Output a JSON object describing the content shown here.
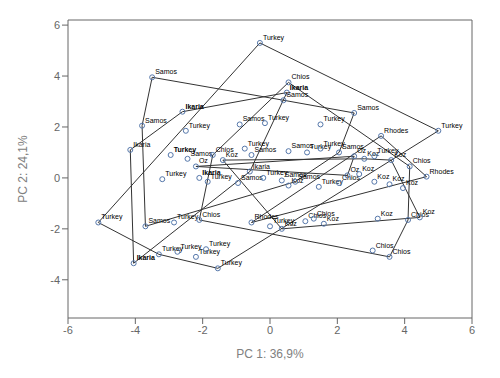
{
  "chart_data": {
    "type": "scatter",
    "xlabel": "PC 1: 36,9%",
    "ylabel": "PC 2: 24,1%",
    "xlim": [
      -6,
      6
    ],
    "ylim": [
      -5.5,
      6.2
    ],
    "xticks": [
      -6,
      -4,
      -2,
      0,
      2,
      4,
      6
    ],
    "yticks": [
      -4,
      -2,
      0,
      2,
      4,
      6
    ],
    "grid": false,
    "series": [
      {
        "type": "scatter",
        "color": "#5577aa",
        "marker": "open_circle",
        "x": [
          -0.3,
          -3.5,
          0.55,
          0.5,
          0.4,
          -2.6,
          -3.8,
          -2.5,
          -0.9,
          -0.15,
          2.5,
          1.5,
          5.0,
          3.3,
          -4.15,
          -2.95,
          -2.45,
          -2.2,
          -1.7,
          -1.4,
          -0.75,
          -0.55,
          0.55,
          1.1,
          1.5,
          2.05,
          2.5,
          2.8,
          3.1,
          3.6,
          4.15,
          4.65,
          -3.2,
          -2.1,
          -1.85,
          -0.95,
          -0.6,
          -0.2,
          0.35,
          0.55,
          0.75,
          1.45,
          2.05,
          2.3,
          2.65,
          3.1,
          3.55,
          3.95,
          -5.1,
          -3.7,
          -2.85,
          -2.1,
          -0.55,
          0.0,
          0.35,
          1.05,
          1.3,
          1.6,
          3.2,
          4.1,
          4.45,
          -3.3,
          -2.75,
          -2.2,
          -1.9,
          3.05,
          3.55,
          -4.05,
          -1.55
        ],
        "values": [
          5.3,
          3.95,
          3.75,
          3.35,
          3.05,
          2.6,
          2.05,
          1.85,
          2.1,
          2.15,
          2.55,
          2.1,
          1.85,
          1.65,
          1.1,
          0.9,
          0.75,
          0.45,
          0.9,
          0.7,
          1.15,
          0.9,
          1.05,
          1.0,
          1.15,
          1.0,
          0.85,
          0.75,
          0.85,
          0.7,
          0.45,
          0.05,
          -0.05,
          0.0,
          -0.15,
          -0.2,
          0.25,
          0.0,
          -0.1,
          -0.3,
          -0.15,
          -0.35,
          -0.2,
          0.1,
          0.15,
          -0.15,
          -0.25,
          -0.4,
          -1.75,
          -1.9,
          -1.75,
          -1.65,
          -1.75,
          -1.9,
          -2.0,
          -1.7,
          -1.6,
          -1.8,
          -1.6,
          -1.65,
          -1.55,
          -3.0,
          -2.9,
          -3.1,
          -2.8,
          -2.85,
          -3.1,
          -3.35,
          -3.55
        ],
        "labels": [
          "Turkey",
          "Samos",
          "Chios",
          "Ikaria",
          "Samos",
          "Ikaria",
          "Samos",
          "Turkey",
          "Samos",
          "Turkey",
          "Samos",
          "Turkey",
          "Turkey",
          "Rhodes",
          "Ikaria",
          "Turkey",
          "Samos",
          "Oz",
          "Chios",
          "Koz",
          "Turkey",
          "Samos",
          "Samos",
          "Turkey",
          "Turkey",
          "Samos",
          "Oz",
          "Koz",
          "Turkey",
          "Koz",
          "Chios",
          "Rhodes",
          "Turkey",
          "Ikaria",
          "Turkey",
          "Samos",
          "Ikaria",
          "Turkey",
          "Samos",
          "Koz",
          "Samos",
          "Turkey",
          "Chios",
          "Oz",
          "Koz",
          "Koz",
          "Koz",
          "Koz",
          "Turkey",
          "Samos",
          "Turkey",
          "Chios",
          "Rhodes",
          "Turkey",
          "Koz",
          "Chios",
          "Chios",
          "Koz",
          "Koz",
          "Chios",
          "Koz",
          "Turkey",
          "Turkey",
          "Turkey",
          "Turkey",
          "Chios",
          "Chios",
          "Ikaria",
          "Turkey"
        ],
        "bold": [
          false,
          false,
          false,
          true,
          false,
          true,
          false,
          false,
          false,
          false,
          false,
          false,
          false,
          false,
          false,
          true,
          false,
          false,
          false,
          false,
          false,
          false,
          false,
          false,
          false,
          false,
          false,
          false,
          false,
          false,
          false,
          false,
          false,
          true,
          false,
          false,
          false,
          false,
          false,
          false,
          false,
          false,
          false,
          false,
          false,
          false,
          false,
          false,
          false,
          false,
          false,
          false,
          false,
          false,
          false,
          false,
          false,
          false,
          false,
          false,
          false,
          false,
          false,
          false,
          false,
          false,
          false,
          true,
          false
        ]
      },
      {
        "type": "hull",
        "color": "#333333",
        "line_style": "solid"
      }
    ]
  }
}
